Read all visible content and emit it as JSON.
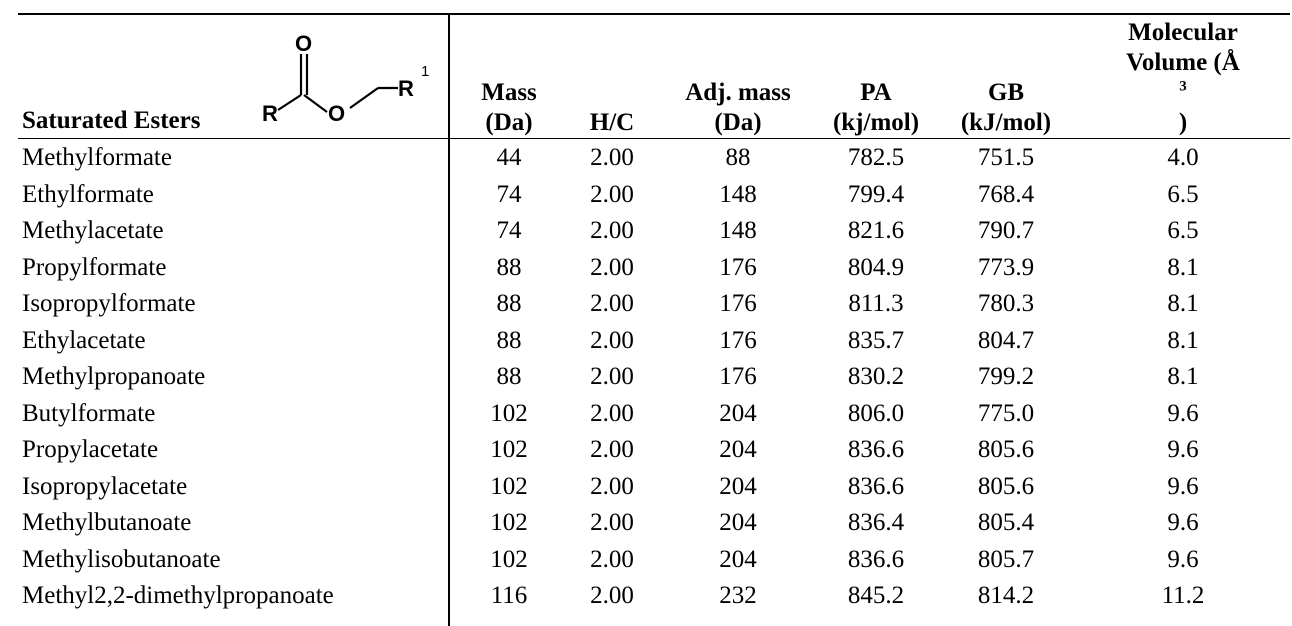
{
  "header": {
    "first_column_label": "Saturated Esters",
    "structure": {
      "o_top": "O",
      "o_mid": "O",
      "r": "R",
      "r1": "R",
      "r1_sup": "1"
    },
    "columns": [
      {
        "line1": "Mass",
        "line2": "(Da)"
      },
      {
        "line1": "",
        "line2": "H/C"
      },
      {
        "line1": "Adj. mass",
        "line2": "(Da)"
      },
      {
        "line1": "PA",
        "line2": "(kj/mol)"
      },
      {
        "line1": "GB",
        "line2": "(kJ/mol)"
      },
      {
        "line1": "Molecular",
        "line2": "Volume (Å",
        "line2_sup": "3",
        "line2_end": ")"
      }
    ]
  },
  "rows": [
    {
      "name": "Methylformate",
      "mass": "44",
      "hc": "2.00",
      "adj": "88",
      "pa": "782.5",
      "gb": "751.5",
      "vol": "4.0"
    },
    {
      "name": "Ethylformate",
      "mass": "74",
      "hc": "2.00",
      "adj": "148",
      "pa": "799.4",
      "gb": "768.4",
      "vol": "6.5"
    },
    {
      "name": "Methylacetate",
      "mass": "74",
      "hc": "2.00",
      "adj": "148",
      "pa": "821.6",
      "gb": "790.7",
      "vol": "6.5"
    },
    {
      "name": "Propylformate",
      "mass": "88",
      "hc": "2.00",
      "adj": "176",
      "pa": "804.9",
      "gb": "773.9",
      "vol": "8.1"
    },
    {
      "name": "Isopropylformate",
      "mass": "88",
      "hc": "2.00",
      "adj": "176",
      "pa": "811.3",
      "gb": "780.3",
      "vol": "8.1"
    },
    {
      "name": "Ethylacetate",
      "mass": "88",
      "hc": "2.00",
      "adj": "176",
      "pa": "835.7",
      "gb": "804.7",
      "vol": "8.1"
    },
    {
      "name": "Methylpropanoate",
      "mass": "88",
      "hc": "2.00",
      "adj": "176",
      "pa": "830.2",
      "gb": "799.2",
      "vol": "8.1"
    },
    {
      "name": "Butylformate",
      "mass": "102",
      "hc": "2.00",
      "adj": "204",
      "pa": "806.0",
      "gb": "775.0",
      "vol": "9.6"
    },
    {
      "name": "Propylacetate",
      "mass": "102",
      "hc": "2.00",
      "adj": "204",
      "pa": "836.6",
      "gb": "805.6",
      "vol": "9.6"
    },
    {
      "name": "Isopropylacetate",
      "mass": "102",
      "hc": "2.00",
      "adj": "204",
      "pa": "836.6",
      "gb": "805.6",
      "vol": "9.6"
    },
    {
      "name": "Methylbutanoate",
      "mass": "102",
      "hc": "2.00",
      "adj": "204",
      "pa": "836.4",
      "gb": "805.4",
      "vol": "9.6"
    },
    {
      "name": "Methylisobutanoate",
      "mass": "102",
      "hc": "2.00",
      "adj": "204",
      "pa": "836.6",
      "gb": "805.7",
      "vol": "9.6"
    },
    {
      "name": "Methyl2,2-dimethylpropanoate",
      "mass": "116",
      "hc": "2.00",
      "adj": "232",
      "pa": "845.2",
      "gb": "814.2",
      "vol": "11.2"
    }
  ]
}
